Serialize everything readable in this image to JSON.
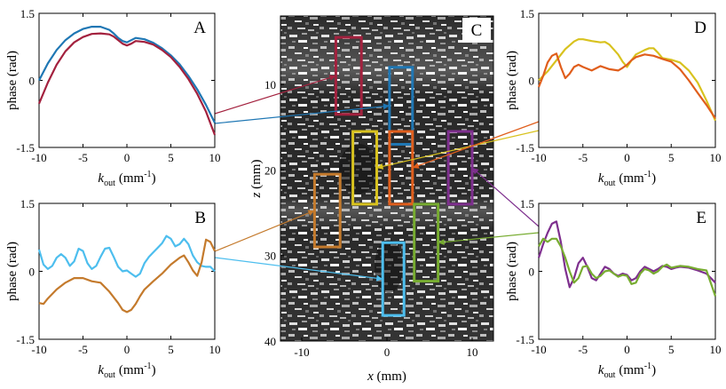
{
  "figure": {
    "colors": {
      "dark_red": "#A3213E",
      "blue": "#1F77B4",
      "light_blue": "#4DBEEE",
      "brown": "#C47A2C",
      "yellow": "#D8C21E",
      "orange": "#E05E1C",
      "purple": "#7E2F8E",
      "green": "#77AC30"
    },
    "image_panel": {
      "letter": "C",
      "xlabel": "x",
      "xlabel_unit": "(mm)",
      "ylabel": "z",
      "ylabel_unit": "(mm)",
      "x_ticks": [
        "-10",
        "0",
        "10"
      ],
      "y_ticks": [
        "10",
        "20",
        "30",
        "40"
      ],
      "roi_boxes": [
        {
          "color": "dark_red",
          "x": [
            -6,
            -3
          ],
          "z": [
            4.5,
            13.5
          ],
          "target": "A"
        },
        {
          "color": "blue",
          "x": [
            0.3,
            3
          ],
          "z": [
            8,
            17
          ],
          "target": "A"
        },
        {
          "color": "yellow",
          "x": [
            -4,
            -1.2
          ],
          "z": [
            15.5,
            24
          ],
          "target": "D"
        },
        {
          "color": "orange",
          "x": [
            0.3,
            3
          ],
          "z": [
            15.5,
            24
          ],
          "target": "D"
        },
        {
          "color": "purple",
          "x": [
            7.2,
            10
          ],
          "z": [
            15.5,
            24
          ],
          "target": "E"
        },
        {
          "color": "green",
          "x": [
            3.2,
            6
          ],
          "z": [
            24,
            33
          ],
          "target": "E"
        },
        {
          "color": "brown",
          "x": [
            -8.5,
            -5.5
          ],
          "z": [
            20.5,
            29
          ],
          "target": "B"
        },
        {
          "color": "light_blue",
          "x": [
            -0.5,
            2
          ],
          "z": [
            28.5,
            37
          ],
          "target": "B"
        }
      ]
    }
  },
  "chart_data": [
    {
      "panel": "A",
      "type": "line",
      "xlabel": "k",
      "xlabel_sub": "out",
      "xlabel_unit": "(mm",
      "xlabel_sup": "-1",
      "xlabel_close": ")",
      "ylabel": "phase (rad)",
      "xlim": [
        -10,
        10
      ],
      "ylim": [
        -1.5,
        1.5
      ],
      "x_ticks": [
        "-10",
        "-5",
        "0",
        "5",
        "10"
      ],
      "y_ticks": [
        "1.5",
        "0",
        "-1.5"
      ],
      "series": [
        {
          "color": "blue",
          "x": [
            -10,
            -9,
            -8,
            -7,
            -6,
            -5,
            -4,
            -3,
            -2,
            -1.5,
            -1,
            -0.5,
            0,
            0.5,
            1,
            2,
            3,
            4,
            5,
            6,
            7,
            8,
            9,
            10
          ],
          "y": [
            0.0,
            0.38,
            0.68,
            0.9,
            1.05,
            1.15,
            1.2,
            1.2,
            1.13,
            1.05,
            0.95,
            0.88,
            0.85,
            0.9,
            0.95,
            0.92,
            0.84,
            0.72,
            0.56,
            0.36,
            0.1,
            -0.2,
            -0.55,
            -0.95
          ]
        },
        {
          "color": "dark_red",
          "x": [
            -10,
            -9,
            -8,
            -7,
            -6,
            -5,
            -4,
            -3,
            -2,
            -1.5,
            -1,
            -0.5,
            0,
            0.5,
            1,
            2,
            3,
            4,
            5,
            6,
            7,
            8,
            9,
            10
          ],
          "y": [
            -0.52,
            -0.05,
            0.35,
            0.65,
            0.85,
            0.97,
            1.04,
            1.05,
            1.03,
            0.98,
            0.9,
            0.82,
            0.78,
            0.82,
            0.88,
            0.86,
            0.8,
            0.68,
            0.52,
            0.3,
            0.03,
            -0.3,
            -0.7,
            -1.22
          ]
        }
      ]
    },
    {
      "panel": "B",
      "type": "line",
      "xlabel": "k",
      "xlabel_sub": "out",
      "xlabel_unit": "(mm",
      "xlabel_sup": "-1",
      "xlabel_close": ")",
      "ylabel": "phase (rad)",
      "xlim": [
        -10,
        10
      ],
      "ylim": [
        -1.5,
        1.5
      ],
      "x_ticks": [
        "-10",
        "-5",
        "0",
        "5",
        "10"
      ],
      "y_ticks": [
        "1.5",
        "0",
        "-1.5"
      ],
      "series": [
        {
          "color": "light_blue",
          "x": [
            -10,
            -9.5,
            -9,
            -8.5,
            -8,
            -7.5,
            -7,
            -6.5,
            -6,
            -5.5,
            -5,
            -4.5,
            -4,
            -3.5,
            -3,
            -2.5,
            -2,
            -1.5,
            -1,
            -0.5,
            0,
            0.5,
            1,
            1.5,
            2,
            2.5,
            3,
            3.5,
            4,
            4.5,
            5,
            5.5,
            6,
            6.5,
            7,
            7.5,
            8,
            8.5,
            9,
            9.5,
            10
          ],
          "y": [
            0.48,
            0.15,
            0.05,
            0.12,
            0.3,
            0.38,
            0.3,
            0.12,
            0.22,
            0.5,
            0.45,
            0.18,
            0.05,
            0.12,
            0.32,
            0.5,
            0.52,
            0.32,
            0.1,
            0.0,
            0.02,
            -0.05,
            -0.12,
            -0.05,
            0.18,
            0.32,
            0.42,
            0.52,
            0.62,
            0.78,
            0.72,
            0.55,
            0.6,
            0.72,
            0.6,
            0.35,
            0.2,
            0.12,
            0.1,
            0.1,
            0.0
          ]
        },
        {
          "color": "brown",
          "x": [
            -10,
            -9.5,
            -9,
            -8,
            -7,
            -6,
            -5,
            -4,
            -3,
            -2,
            -1,
            -0.5,
            0,
            0.5,
            1,
            1.5,
            2,
            3,
            4,
            5,
            6,
            6.5,
            7,
            7.5,
            8,
            8.5,
            9,
            9.5,
            10
          ],
          "y": [
            -0.7,
            -0.72,
            -0.6,
            -0.4,
            -0.25,
            -0.15,
            -0.15,
            -0.22,
            -0.25,
            -0.45,
            -0.7,
            -0.85,
            -0.9,
            -0.85,
            -0.72,
            -0.55,
            -0.4,
            -0.22,
            -0.05,
            0.15,
            0.3,
            0.35,
            0.2,
            0.02,
            -0.1,
            0.2,
            0.7,
            0.65,
            0.45
          ]
        }
      ]
    },
    {
      "panel": "D",
      "type": "line",
      "xlabel": "k",
      "xlabel_sub": "out",
      "xlabel_unit": "(mm",
      "xlabel_sup": "-1",
      "xlabel_close": ")",
      "ylabel": "phase (rad)",
      "xlim": [
        -10,
        10
      ],
      "ylim": [
        -1.5,
        1.5
      ],
      "x_ticks": [
        "-10",
        "-5",
        "0",
        "5",
        "10"
      ],
      "y_ticks": [
        "1.5",
        "0",
        "-1.5"
      ],
      "series": [
        {
          "color": "yellow",
          "x": [
            -10,
            -9,
            -8,
            -7,
            -6,
            -5.5,
            -5,
            -4,
            -3,
            -2.5,
            -2,
            -1,
            -0.5,
            0,
            0.5,
            1,
            2,
            2.5,
            3,
            3.5,
            4,
            5,
            6,
            7,
            8,
            9,
            10
          ],
          "y": [
            0.0,
            0.2,
            0.45,
            0.7,
            0.87,
            0.92,
            0.92,
            0.88,
            0.85,
            0.86,
            0.8,
            0.58,
            0.42,
            0.3,
            0.45,
            0.58,
            0.68,
            0.72,
            0.72,
            0.62,
            0.5,
            0.46,
            0.4,
            0.22,
            -0.05,
            -0.45,
            -0.9
          ]
        },
        {
          "color": "orange",
          "x": [
            -10,
            -9.5,
            -9,
            -8.5,
            -8,
            -7.5,
            -7,
            -6.5,
            -6,
            -5.5,
            -5,
            -4,
            -3,
            -2,
            -1,
            -0.5,
            0,
            0.5,
            1,
            2,
            3,
            4,
            5,
            6,
            7,
            8,
            9,
            10
          ],
          "y": [
            -0.15,
            0.1,
            0.4,
            0.55,
            0.6,
            0.3,
            0.05,
            0.15,
            0.3,
            0.35,
            0.3,
            0.22,
            0.32,
            0.25,
            0.22,
            0.28,
            0.35,
            0.45,
            0.52,
            0.58,
            0.55,
            0.48,
            0.42,
            0.25,
            0.0,
            -0.28,
            -0.55,
            -0.85
          ]
        }
      ]
    },
    {
      "panel": "E",
      "type": "line",
      "xlabel": "k",
      "xlabel_sub": "out",
      "xlabel_unit": "(mm",
      "xlabel_sup": "-1",
      "xlabel_close": ")",
      "ylabel": "phase (rad)",
      "xlim": [
        -10,
        10
      ],
      "ylim": [
        -1.5,
        1.5
      ],
      "x_ticks": [
        "-10",
        "-5",
        "0",
        "5",
        "10"
      ],
      "y_ticks": [
        "1.5",
        "0",
        "-1.5"
      ],
      "series": [
        {
          "color": "purple",
          "x": [
            -10,
            -9.5,
            -9,
            -8.5,
            -8,
            -7.5,
            -7,
            -6.5,
            -6,
            -5.5,
            -5,
            -4.5,
            -4,
            -3.5,
            -3,
            -2.5,
            -2,
            -1.5,
            -1,
            -0.5,
            0,
            0.5,
            1,
            1.5,
            2,
            2.5,
            3,
            3.5,
            4,
            4.5,
            5,
            5.5,
            6,
            7,
            8,
            9,
            10
          ],
          "y": [
            0.3,
            0.6,
            0.85,
            1.05,
            1.1,
            0.65,
            0.05,
            -0.35,
            -0.15,
            0.18,
            0.3,
            0.1,
            -0.15,
            -0.2,
            -0.05,
            0.1,
            0.05,
            -0.05,
            -0.1,
            -0.05,
            -0.08,
            -0.2,
            -0.15,
            0.0,
            0.1,
            0.05,
            0.0,
            0.05,
            0.12,
            0.1,
            0.05,
            0.08,
            0.1,
            0.08,
            0.02,
            -0.05,
            -0.25
          ]
        },
        {
          "color": "green",
          "x": [
            -10,
            -9.5,
            -9,
            -8.5,
            -8,
            -7.5,
            -7,
            -6.5,
            -6,
            -5.5,
            -5,
            -4.5,
            -4,
            -3.5,
            -3,
            -2.5,
            -2,
            -1.5,
            -1,
            -0.5,
            0,
            0.5,
            1,
            1.5,
            2,
            2.5,
            3,
            3.5,
            4,
            4.5,
            5,
            5.5,
            6,
            7,
            8,
            9,
            10
          ],
          "y": [
            0.55,
            0.72,
            0.65,
            0.72,
            0.72,
            0.55,
            0.3,
            0.0,
            -0.25,
            -0.15,
            0.1,
            0.12,
            -0.05,
            -0.15,
            -0.1,
            0.0,
            0.02,
            -0.05,
            -0.12,
            -0.08,
            -0.1,
            -0.28,
            -0.25,
            -0.05,
            0.05,
            0.02,
            -0.05,
            0.0,
            0.1,
            0.15,
            0.08,
            0.1,
            0.12,
            0.1,
            0.05,
            0.02,
            -0.55
          ]
        }
      ]
    }
  ]
}
